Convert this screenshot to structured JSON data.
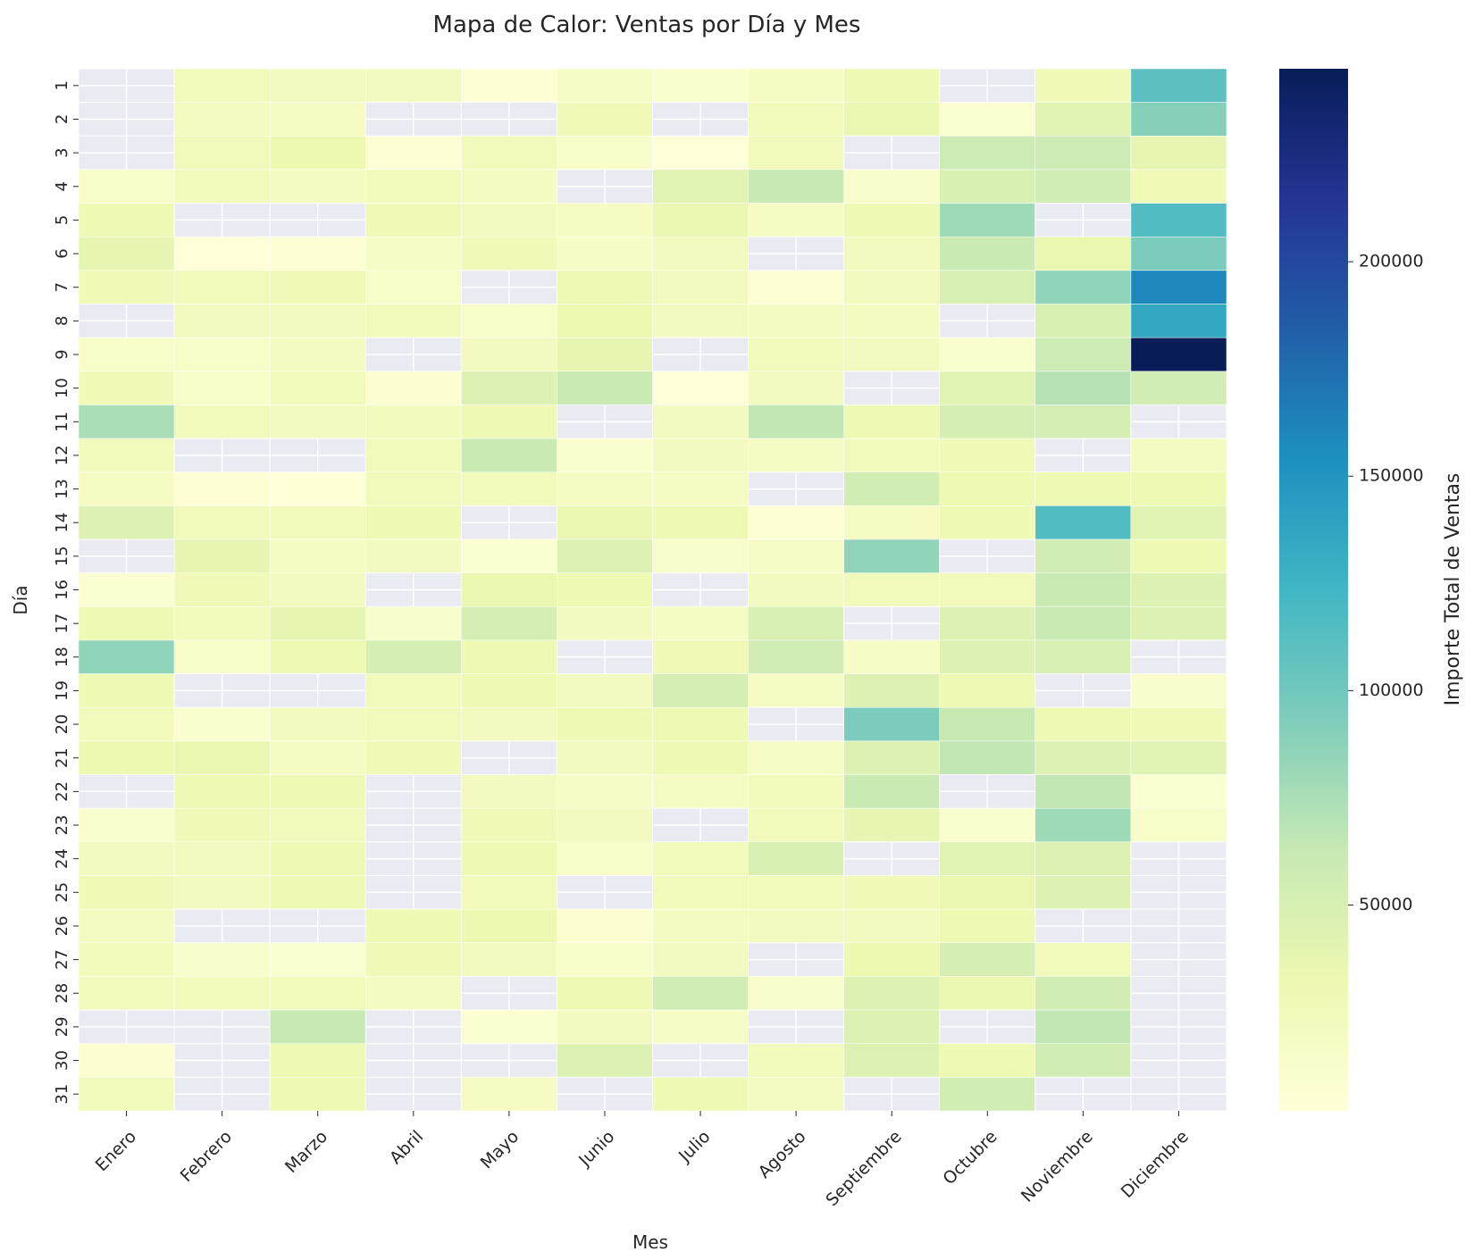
{
  "chart_data": {
    "type": "heatmap",
    "title": "Mapa de Calor: Ventas por Día y Mes",
    "xlabel": "Mes",
    "ylabel": "Día",
    "colorbar_label": "Importe Total de Ventas",
    "colormap": "YlGnBu",
    "missing_color": "#eaeaf2",
    "x_categories": [
      "Enero",
      "Febrero",
      "Marzo",
      "Abril",
      "Mayo",
      "Junio",
      "Julio",
      "Agosto",
      "Septiembre",
      "Octubre",
      "Noviembre",
      "Diciembre"
    ],
    "y_categories": [
      "1",
      "2",
      "3",
      "4",
      "5",
      "6",
      "7",
      "8",
      "9",
      "10",
      "11",
      "12",
      "13",
      "14",
      "15",
      "16",
      "17",
      "18",
      "19",
      "20",
      "21",
      "22",
      "23",
      "24",
      "25",
      "26",
      "27",
      "28",
      "29",
      "30",
      "31"
    ],
    "colorbar_range": [
      2000,
      245000
    ],
    "colorbar_ticks": [
      50000,
      100000,
      150000,
      200000
    ],
    "values": [
      [
        null,
        25000,
        22000,
        22000,
        5000,
        17000,
        10000,
        18000,
        30000,
        null,
        28000,
        110000
      ],
      [
        null,
        20000,
        18000,
        null,
        null,
        28000,
        null,
        25000,
        35000,
        8000,
        42000,
        90000
      ],
      [
        null,
        25000,
        32000,
        5000,
        25000,
        15000,
        3000,
        25000,
        null,
        58000,
        58000,
        38000
      ],
      [
        15000,
        25000,
        20000,
        25000,
        20000,
        null,
        42000,
        62000,
        12000,
        48000,
        55000,
        27000
      ],
      [
        30000,
        null,
        null,
        28000,
        22000,
        18000,
        35000,
        18000,
        30000,
        80000,
        null,
        115000
      ],
      [
        38000,
        3000,
        6000,
        17000,
        28000,
        17000,
        22000,
        null,
        22000,
        60000,
        35000,
        95000
      ],
      [
        28000,
        25000,
        28000,
        15000,
        null,
        30000,
        22000,
        6000,
        22000,
        50000,
        85000,
        160000
      ],
      [
        null,
        22000,
        22000,
        25000,
        15000,
        32000,
        22000,
        20000,
        20000,
        null,
        48000,
        135000
      ],
      [
        15000,
        15000,
        20000,
        null,
        22000,
        38000,
        null,
        25000,
        22000,
        10000,
        58000,
        245000
      ],
      [
        28000,
        14000,
        25000,
        7000,
        45000,
        60000,
        3000,
        22000,
        null,
        42000,
        70000,
        55000
      ],
      [
        75000,
        25000,
        22000,
        23000,
        30000,
        null,
        22000,
        65000,
        30000,
        52000,
        52000,
        null
      ],
      [
        25000,
        null,
        null,
        25000,
        60000,
        10000,
        22000,
        18000,
        25000,
        28000,
        null,
        20000
      ],
      [
        18000,
        6000,
        4000,
        25000,
        25000,
        18000,
        18000,
        null,
        55000,
        30000,
        30000,
        30000
      ],
      [
        45000,
        25000,
        25000,
        30000,
        null,
        35000,
        30000,
        6000,
        18000,
        30000,
        115000,
        42000
      ],
      [
        null,
        38000,
        18000,
        22000,
        8000,
        45000,
        13000,
        16000,
        85000,
        null,
        55000,
        30000
      ],
      [
        8000,
        28000,
        22000,
        null,
        35000,
        30000,
        null,
        22000,
        25000,
        25000,
        60000,
        45000
      ],
      [
        30000,
        25000,
        38000,
        12000,
        52000,
        22000,
        18000,
        50000,
        null,
        45000,
        60000,
        45000
      ],
      [
        85000,
        15000,
        30000,
        52000,
        30000,
        null,
        28000,
        55000,
        16000,
        45000,
        50000,
        null
      ],
      [
        30000,
        null,
        null,
        25000,
        30000,
        22000,
        52000,
        18000,
        45000,
        30000,
        null,
        12000
      ],
      [
        25000,
        10000,
        22000,
        25000,
        22000,
        30000,
        30000,
        null,
        95000,
        62000,
        30000,
        28000
      ],
      [
        32000,
        35000,
        18000,
        28000,
        null,
        22000,
        30000,
        16000,
        45000,
        65000,
        45000,
        42000
      ],
      [
        null,
        30000,
        30000,
        null,
        22000,
        16000,
        18000,
        25000,
        60000,
        null,
        65000,
        8000
      ],
      [
        10000,
        28000,
        25000,
        null,
        28000,
        22000,
        null,
        25000,
        38000,
        10000,
        80000,
        15000
      ],
      [
        22000,
        22000,
        30000,
        null,
        30000,
        15000,
        25000,
        48000,
        null,
        42000,
        45000,
        null
      ],
      [
        28000,
        22000,
        30000,
        null,
        25000,
        null,
        25000,
        25000,
        28000,
        35000,
        45000,
        null
      ],
      [
        20000,
        null,
        null,
        30000,
        32000,
        7000,
        20000,
        22000,
        22000,
        30000,
        null,
        null
      ],
      [
        25000,
        12000,
        8000,
        28000,
        22000,
        15000,
        22000,
        null,
        32000,
        52000,
        25000,
        null
      ],
      [
        25000,
        25000,
        25000,
        20000,
        null,
        30000,
        55000,
        12000,
        45000,
        35000,
        55000,
        null
      ],
      [
        null,
        null,
        62000,
        null,
        8000,
        22000,
        16000,
        null,
        45000,
        null,
        65000,
        null
      ],
      [
        7000,
        null,
        30000,
        null,
        null,
        45000,
        null,
        25000,
        45000,
        30000,
        55000,
        null
      ],
      [
        25000,
        null,
        30000,
        null,
        18000,
        null,
        30000,
        20000,
        null,
        55000,
        null,
        null
      ]
    ]
  }
}
